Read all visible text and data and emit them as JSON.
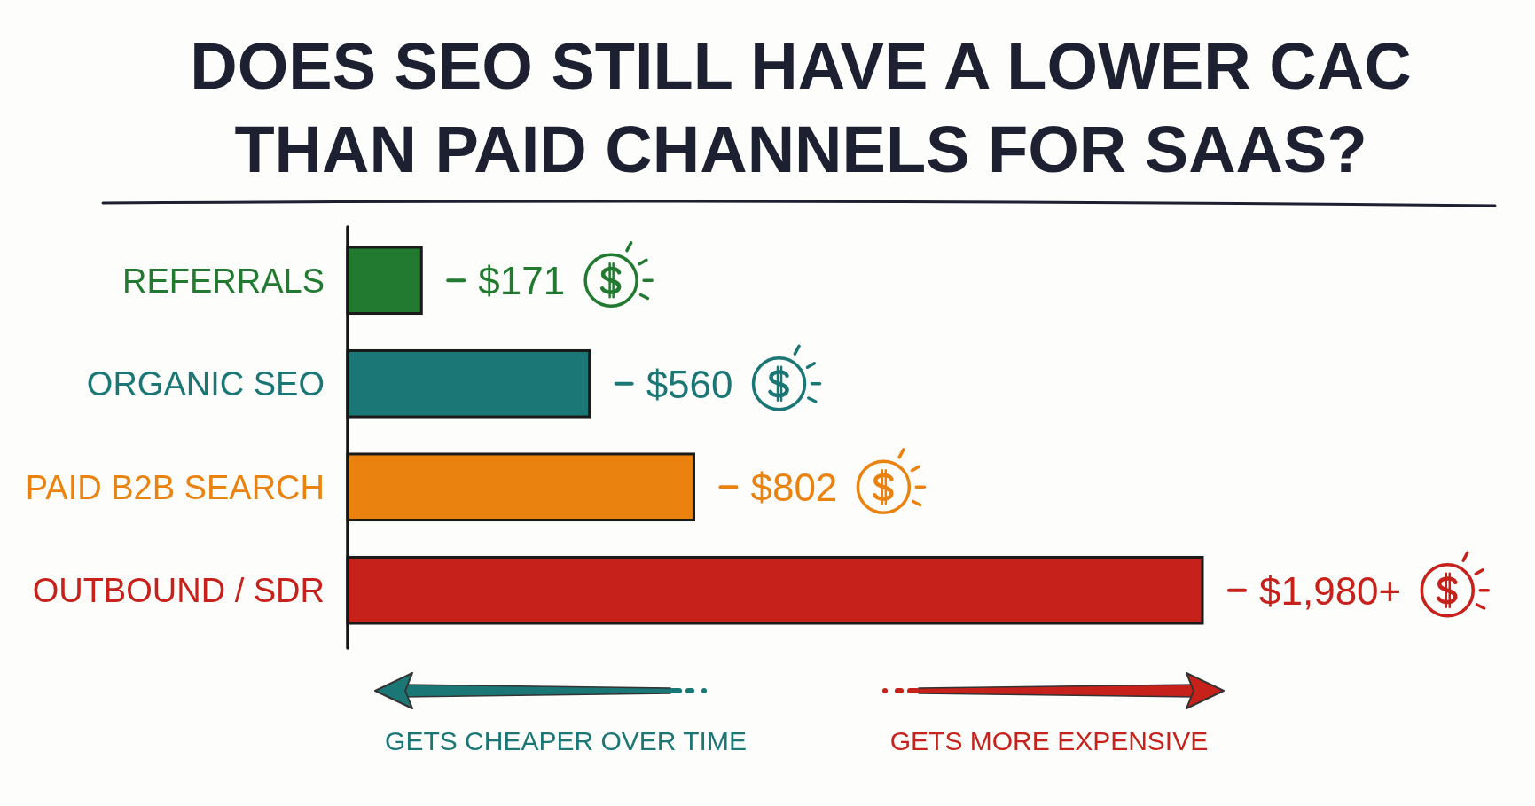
{
  "chart_data": {
    "type": "bar",
    "orientation": "horizontal",
    "title": "DOES SEO STILL HAVE A LOWER CAC THAN PAID CHANNELS FOR SAAS?",
    "categories": [
      "REFERRALS",
      "ORGANIC SEO",
      "PAID B2B SEARCH",
      "OUTBOUND / SDR"
    ],
    "values": [
      171,
      560,
      802,
      1980
    ],
    "colors": [
      "#217a2f",
      "#1a7775",
      "#ea820f",
      "#c6211a"
    ],
    "value_labels": [
      "$171",
      "$560",
      "$802",
      "$1,980+"
    ],
    "tick_labels": "y",
    "annotations": [
      "GETS CHEAPER OVER TIME",
      "GETS MORE EXPENSIVE"
    ]
  }
}
